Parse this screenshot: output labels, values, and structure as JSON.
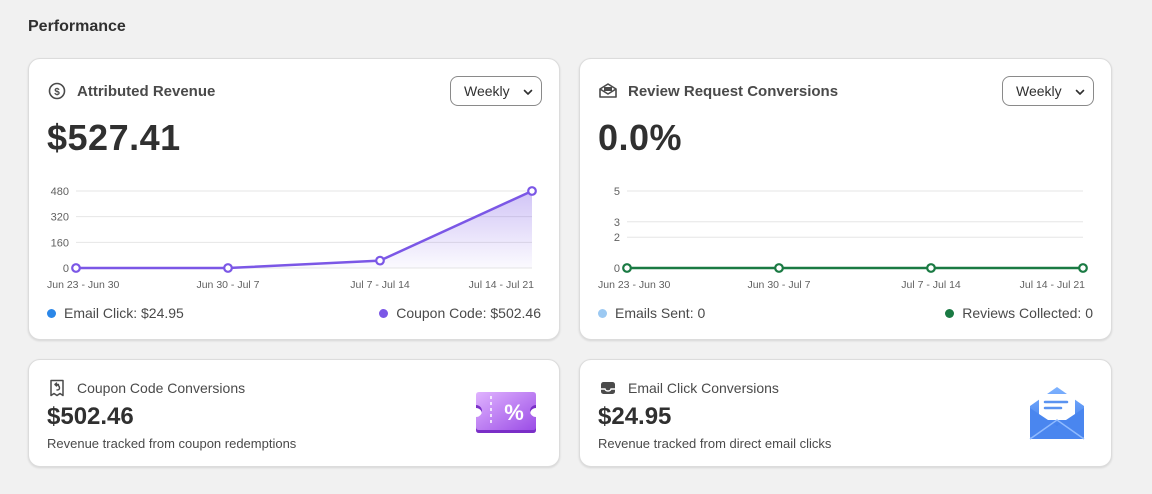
{
  "page": {
    "title": "Performance"
  },
  "revenue_card": {
    "title": "Attributed Revenue",
    "icon": "dollar-circle-icon",
    "period": "Weekly",
    "total": "$527.41",
    "legend": [
      {
        "label": "Email Click: $24.95",
        "color": "#2b87e8"
      },
      {
        "label": "Coupon Code: $502.46",
        "color": "#7b57e6"
      }
    ]
  },
  "review_card": {
    "title": "Review Request Conversions",
    "icon": "envelope-open-icon",
    "period": "Weekly",
    "total": "0.0%",
    "legend": [
      {
        "label": "Emails Sent: 0",
        "color": "#9cc9f2"
      },
      {
        "label": "Reviews Collected: 0",
        "color": "#1a7a43"
      }
    ]
  },
  "coupon_card": {
    "title": "Coupon Code Conversions",
    "icon": "receipt-icon",
    "value": "$502.46",
    "subtitle": "Revenue tracked from coupon redemptions"
  },
  "email_card": {
    "title": "Email Click Conversions",
    "icon": "inbox-icon",
    "value": "$24.95",
    "subtitle": "Revenue tracked from direct email clicks"
  },
  "chart_data": [
    {
      "type": "area",
      "categories": [
        "Jun 23 - Jun 30",
        "Jun 30 - Jul 7",
        "Jul 7 - Jul 14",
        "Jul 14 - Jul 21"
      ],
      "values": [
        0,
        0,
        46,
        480
      ],
      "yticks": [
        0,
        160,
        320,
        480
      ],
      "ylim": [
        0,
        480
      ],
      "color": "#7b57e6",
      "grid": true
    },
    {
      "type": "line",
      "categories": [
        "Jun 23 - Jun 30",
        "Jun 30 - Jul 7",
        "Jul 7 - Jul 14",
        "Jul 14 - Jul 21"
      ],
      "values": [
        0,
        0,
        0,
        0
      ],
      "yticks": [
        0,
        2,
        3,
        5
      ],
      "ylim": [
        0,
        5
      ],
      "color": "#1a7a43",
      "grid": true
    }
  ]
}
